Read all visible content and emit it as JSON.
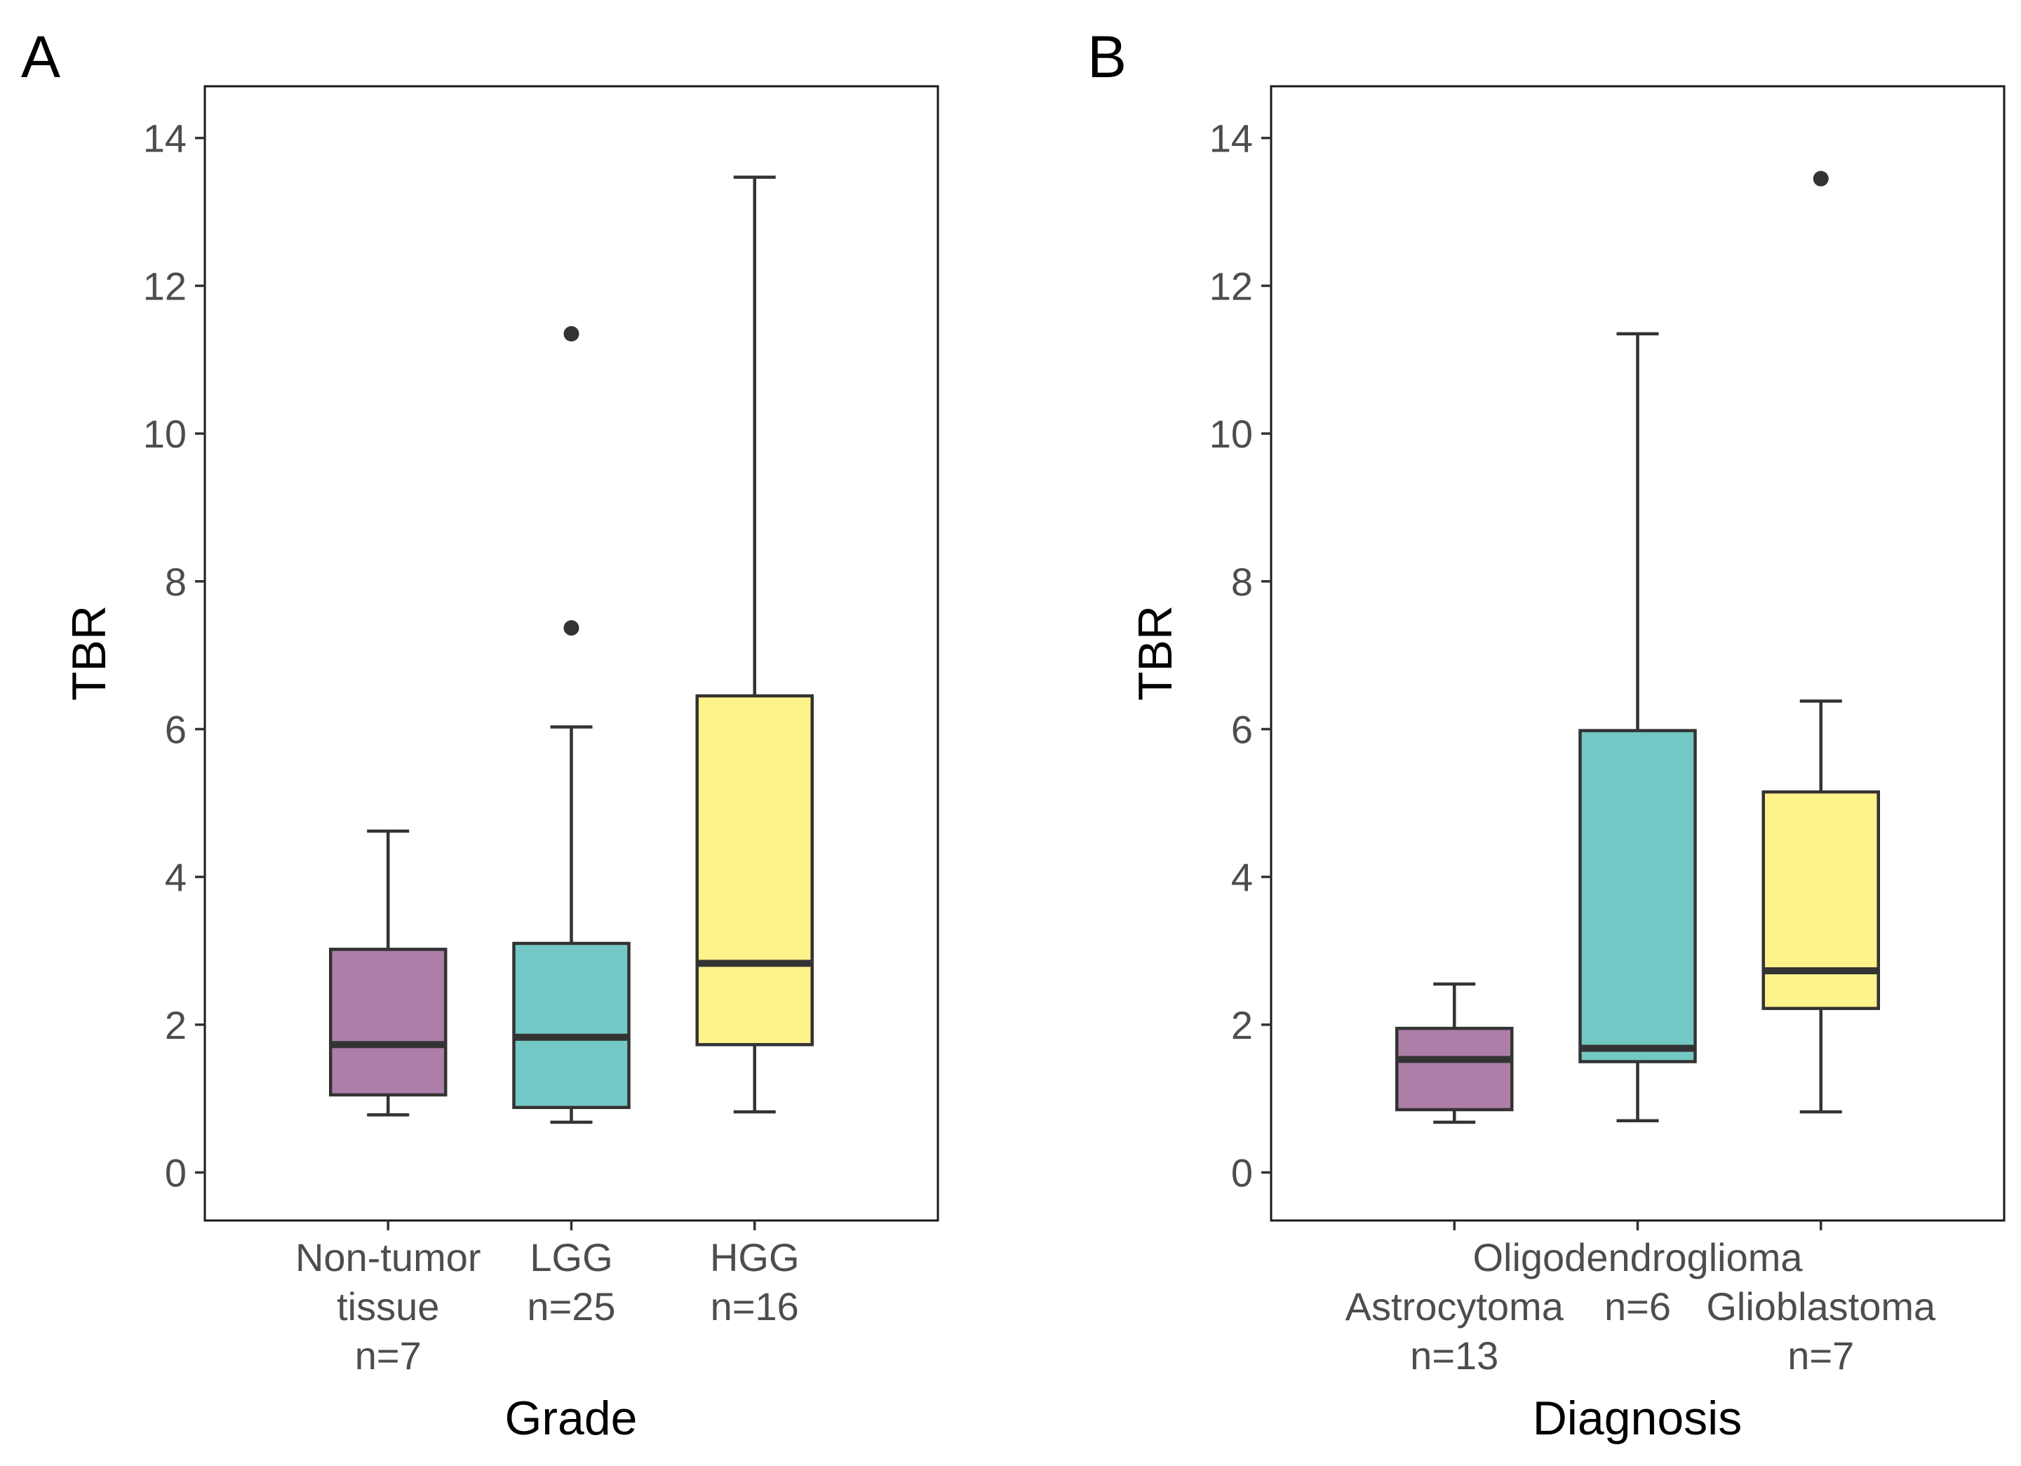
{
  "chart_data": [
    {
      "type": "box",
      "panel_label": "A",
      "xlabel": "Grade",
      "ylabel": "TBR",
      "ylim": [
        -0.65,
        14.7
      ],
      "yticks": [
        0,
        2,
        4,
        6,
        8,
        10,
        12,
        14
      ],
      "categories": [
        {
          "name": "non-tumor",
          "label_lines": [
            "Non-tumor",
            "tissue",
            "n=7"
          ],
          "color": "#ad7fa8",
          "whisker_low": 0.78,
          "q1": 1.05,
          "median": 1.73,
          "q3": 3.02,
          "whisker_high": 4.62,
          "outliers": []
        },
        {
          "name": "lgg",
          "label_lines": [
            "LGG",
            "n=25"
          ],
          "color": "#73c8c5",
          "whisker_low": 0.68,
          "q1": 0.88,
          "median": 1.83,
          "q3": 3.1,
          "whisker_high": 6.03,
          "outliers": [
            7.37,
            11.35
          ]
        },
        {
          "name": "hgg",
          "label_lines": [
            "HGG",
            "n=16"
          ],
          "color": "#fef28a",
          "whisker_low": 0.82,
          "q1": 1.73,
          "median": 2.83,
          "q3": 6.45,
          "whisker_high": 13.47,
          "outliers": []
        }
      ]
    },
    {
      "type": "box",
      "panel_label": "B",
      "xlabel": "Diagnosis",
      "ylabel": "TBR",
      "ylim": [
        -0.65,
        14.7
      ],
      "yticks": [
        0,
        2,
        4,
        6,
        8,
        10,
        12,
        14
      ],
      "categories": [
        {
          "name": "astrocytoma",
          "label_lines": [
            "Astrocytoma",
            "n=13"
          ],
          "label_row": 1,
          "color": "#ad7fa8",
          "whisker_low": 0.68,
          "q1": 0.85,
          "median": 1.53,
          "q3": 1.95,
          "whisker_high": 2.55,
          "outliers": []
        },
        {
          "name": "oligodendroglioma",
          "label_lines": [
            "Oligodendroglioma",
            "n=6"
          ],
          "label_row": 0,
          "color": "#73c8c5",
          "whisker_low": 0.7,
          "q1": 1.5,
          "median": 1.68,
          "q3": 5.98,
          "whisker_high": 11.35,
          "outliers": []
        },
        {
          "name": "glioblastoma",
          "label_lines": [
            "Glioblastoma",
            "n=7"
          ],
          "label_row": 1,
          "color": "#fef28a",
          "whisker_low": 0.82,
          "q1": 2.22,
          "median": 2.73,
          "q3": 5.15,
          "whisker_high": 6.38,
          "outliers": [
            13.45
          ]
        }
      ]
    }
  ]
}
